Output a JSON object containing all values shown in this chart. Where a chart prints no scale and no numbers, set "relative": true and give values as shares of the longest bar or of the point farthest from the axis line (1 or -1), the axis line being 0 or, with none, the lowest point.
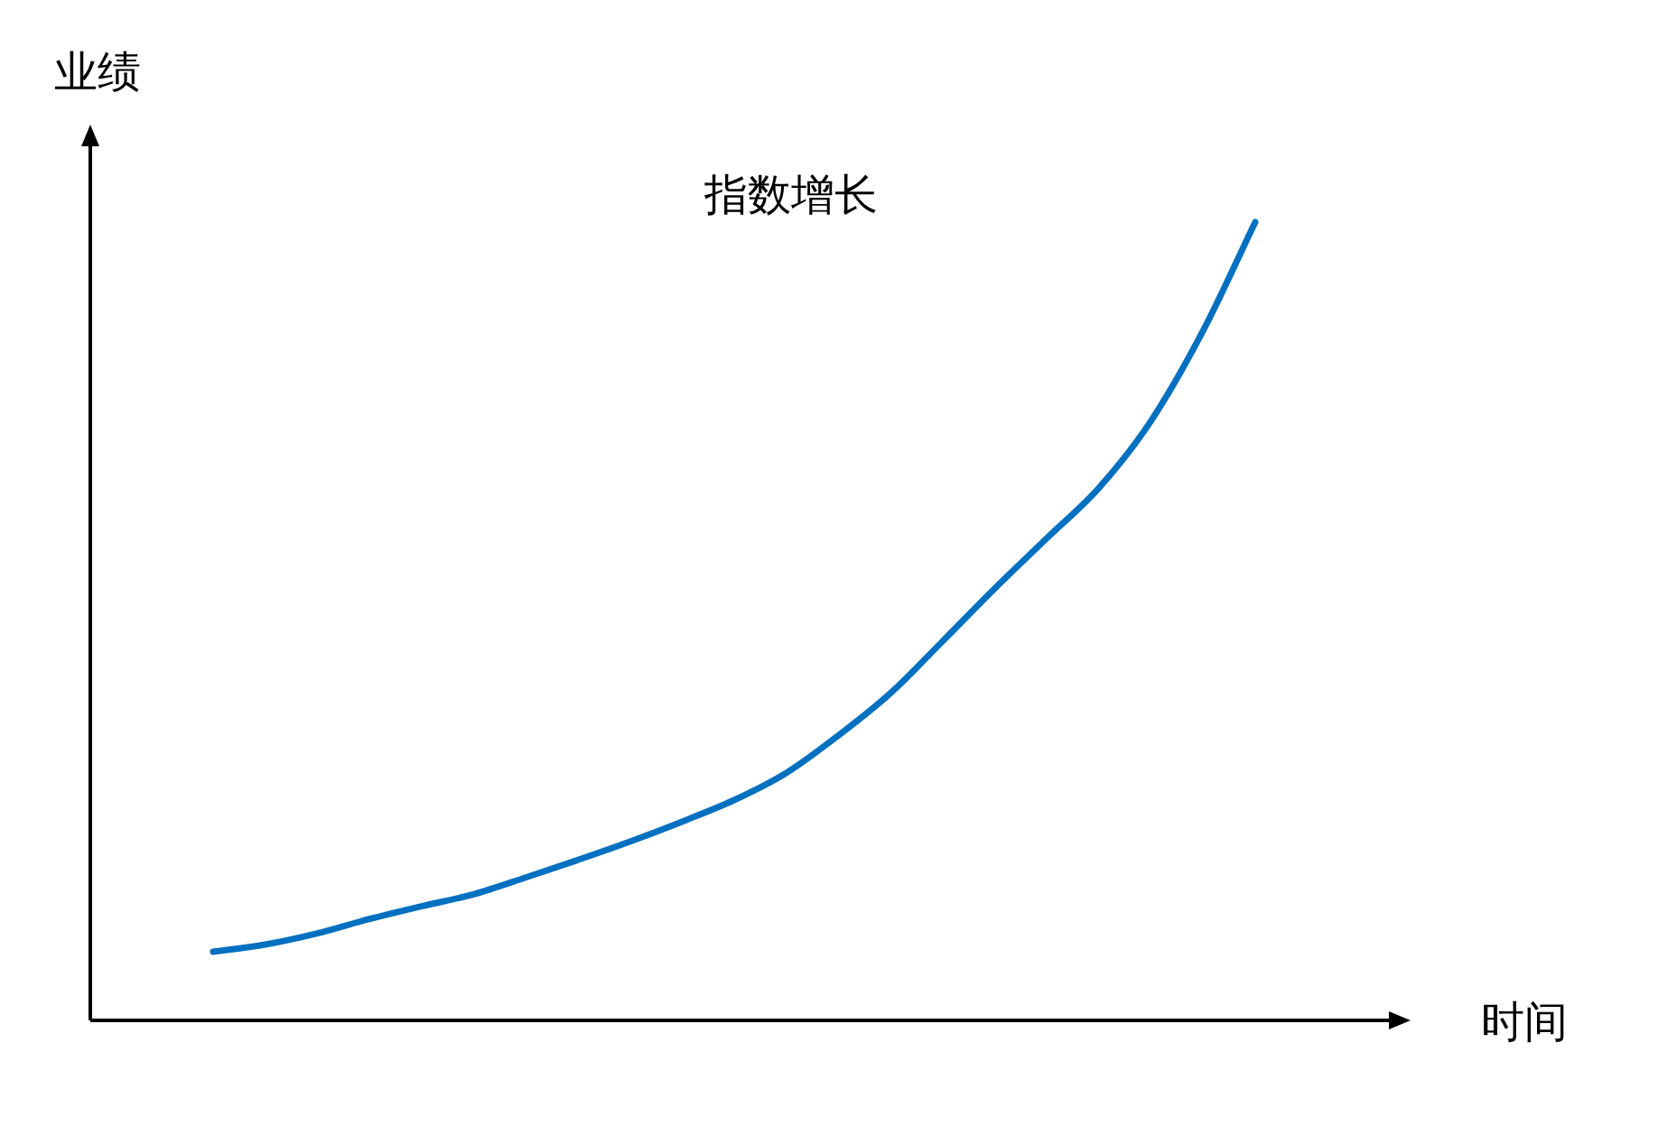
{
  "chart_data": {
    "type": "line",
    "title": "指数增长",
    "xlabel": "时间",
    "ylabel": "业绩",
    "relative": true,
    "categories": [
      null,
      null,
      null,
      null,
      null,
      null,
      null,
      null,
      null,
      null,
      null,
      null,
      null,
      null,
      null,
      null,
      null,
      null,
      null,
      null,
      null
    ],
    "series": [
      {
        "color": "#0070c0",
        "values": [
          0.086,
          0.095,
          0.109,
          0.127,
          0.143,
          0.158,
          0.179,
          0.201,
          0.224,
          0.249,
          0.276,
          0.31,
          0.357,
          0.41,
          0.475,
          0.541,
          0.604,
          0.667,
          0.751,
          0.864,
          1
        ]
      }
    ]
  }
}
